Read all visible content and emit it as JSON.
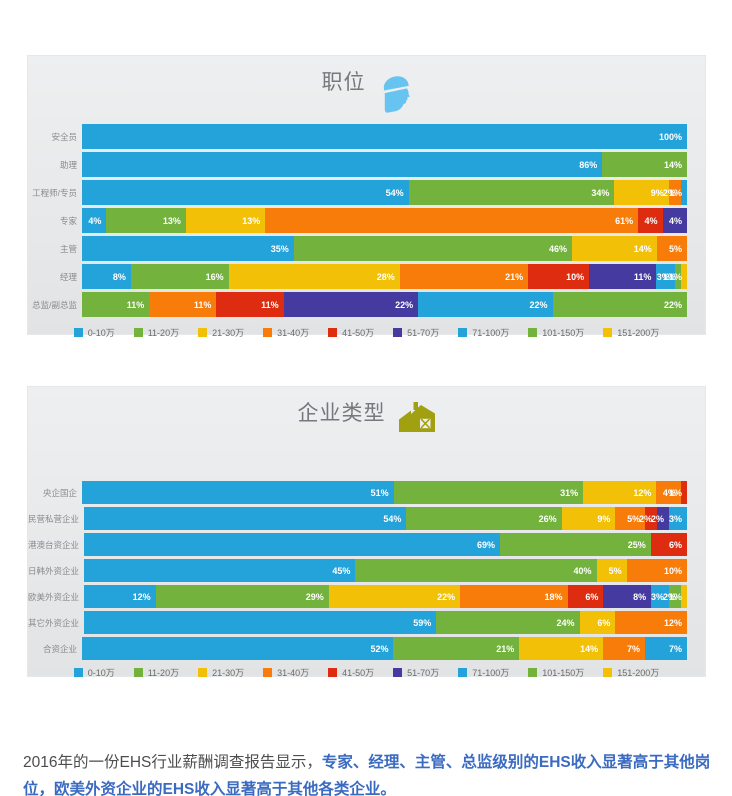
{
  "colors": {
    "blue": "#24a3da",
    "green": "#72b23d",
    "yellow": "#f2c107",
    "orange": "#f87c09",
    "red": "#de2c10",
    "indigo": "#443a9f",
    "title_text": "#77787b",
    "row_label_text": "#8b8b8b",
    "helmet_icon": "#67c4f1",
    "barn_icon": "#a1a010",
    "icon_detail": "#edeeef",
    "footer_text": "#4d4d4f",
    "footer_highlight": "#3b6ac1",
    "panel_background_top": "#eeeff0",
    "panel_background_bottom": "#e1e3e5"
  },
  "band_color_keys": {
    "0-10万": "blue",
    "11-20万": "green",
    "21-30万": "yellow",
    "31-40万": "orange",
    "41-50万": "red",
    "51-70万": "indigo",
    "71-100万": "blue",
    "101-150万": "green",
    "151-200万": "yellow"
  },
  "legend": {
    "items": [
      "0-10万",
      "11-20万",
      "21-30万",
      "31-40万",
      "41-50万",
      "51-70万",
      "71-100万",
      "101-150万",
      "151-200万"
    ],
    "color_keys": [
      "blue",
      "green",
      "yellow",
      "orange",
      "red",
      "indigo",
      "blue",
      "green",
      "yellow"
    ],
    "position": "bottom-center"
  },
  "value_suffix": "%",
  "chart_data": [
    {
      "type": "bar",
      "subtype": "horizontal-stacked-100",
      "title": "职位",
      "icon": "helmet-icon",
      "unit": "%",
      "xlim": [
        0,
        100
      ],
      "grid": false,
      "series_bands": [
        "0-10万",
        "11-20万",
        "21-30万",
        "31-40万",
        "41-50万",
        "51-70万",
        "71-100万",
        "101-150万",
        "151-200万"
      ],
      "categories": [
        "安全员",
        "助理",
        "工程师/专员",
        "专家",
        "主管",
        "经理",
        "总监/副总监"
      ],
      "rows": [
        [
          {
            "band": "0-10万",
            "value": 100
          }
        ],
        [
          {
            "band": "0-10万",
            "value": 86
          },
          {
            "band": "11-20万",
            "value": 14
          }
        ],
        [
          {
            "band": "0-10万",
            "value": 54
          },
          {
            "band": "11-20万",
            "value": 34
          },
          {
            "band": "21-30万",
            "value": 9
          },
          {
            "band": "31-40万",
            "value": 2
          },
          {
            "band": "71-100万",
            "value": 1
          }
        ],
        [
          {
            "band": "0-10万",
            "value": 4
          },
          {
            "band": "11-20万",
            "value": 13
          },
          {
            "band": "21-30万",
            "value": 13
          },
          {
            "band": "31-40万",
            "value": 61
          },
          {
            "band": "41-50万",
            "value": 4
          },
          {
            "band": "51-70万",
            "value": 4
          }
        ],
        [
          {
            "band": "0-10万",
            "value": 35
          },
          {
            "band": "11-20万",
            "value": 46
          },
          {
            "band": "21-30万",
            "value": 14
          },
          {
            "band": "31-40万",
            "value": 5
          }
        ],
        [
          {
            "band": "0-10万",
            "value": 8
          },
          {
            "band": "11-20万",
            "value": 16
          },
          {
            "band": "21-30万",
            "value": 28
          },
          {
            "band": "31-40万",
            "value": 21
          },
          {
            "band": "41-50万",
            "value": 10
          },
          {
            "band": "51-70万",
            "value": 11
          },
          {
            "band": "71-100万",
            "value": 3
          },
          {
            "band": "101-150万",
            "value": 1
          },
          {
            "band": "151-200万",
            "value": 1
          }
        ],
        [
          {
            "band": "11-20万",
            "value": 11
          },
          {
            "band": "31-40万",
            "value": 11
          },
          {
            "band": "41-50万",
            "value": 11
          },
          {
            "band": "51-70万",
            "value": 22
          },
          {
            "band": "71-100万",
            "value": 22
          },
          {
            "band": "101-150万",
            "value": 22
          }
        ]
      ]
    },
    {
      "type": "bar",
      "subtype": "horizontal-stacked-100",
      "title": "企业类型",
      "icon": "barn-icon",
      "unit": "%",
      "xlim": [
        0,
        100
      ],
      "grid": false,
      "series_bands": [
        "0-10万",
        "11-20万",
        "21-30万",
        "31-40万",
        "41-50万",
        "51-70万",
        "71-100万",
        "101-150万",
        "151-200万"
      ],
      "categories": [
        "央企国企",
        "民营私营企业",
        "港澳台资企业",
        "日韩外资企业",
        "欧美外资企业",
        "其它外资企业",
        "合资企业"
      ],
      "rows": [
        [
          {
            "band": "0-10万",
            "value": 51
          },
          {
            "band": "11-20万",
            "value": 31
          },
          {
            "band": "21-30万",
            "value": 12
          },
          {
            "band": "31-40万",
            "value": 4
          },
          {
            "band": "41-50万",
            "value": 1
          }
        ],
        [
          {
            "band": "0-10万",
            "value": 54
          },
          {
            "band": "11-20万",
            "value": 26
          },
          {
            "band": "21-30万",
            "value": 9
          },
          {
            "band": "31-40万",
            "value": 5
          },
          {
            "band": "41-50万",
            "value": 2
          },
          {
            "band": "51-70万",
            "value": 2
          },
          {
            "band": "71-100万",
            "value": 3
          }
        ],
        [
          {
            "band": "0-10万",
            "value": 69
          },
          {
            "band": "11-20万",
            "value": 25
          },
          {
            "band": "41-50万",
            "value": 6
          }
        ],
        [
          {
            "band": "0-10万",
            "value": 45
          },
          {
            "band": "11-20万",
            "value": 40
          },
          {
            "band": "21-30万",
            "value": 5
          },
          {
            "band": "31-40万",
            "value": 10
          }
        ],
        [
          {
            "band": "0-10万",
            "value": 12
          },
          {
            "band": "11-20万",
            "value": 29
          },
          {
            "band": "21-30万",
            "value": 22
          },
          {
            "band": "31-40万",
            "value": 18
          },
          {
            "band": "41-50万",
            "value": 6
          },
          {
            "band": "51-70万",
            "value": 8
          },
          {
            "band": "71-100万",
            "value": 3
          },
          {
            "band": "101-150万",
            "value": 2
          },
          {
            "band": "151-200万",
            "value": 1
          }
        ],
        [
          {
            "band": "0-10万",
            "value": 59
          },
          {
            "band": "11-20万",
            "value": 24
          },
          {
            "band": "21-30万",
            "value": 6
          },
          {
            "band": "31-40万",
            "value": 12
          }
        ],
        [
          {
            "band": "0-10万",
            "value": 52
          },
          {
            "band": "11-20万",
            "value": 21
          },
          {
            "band": "21-30万",
            "value": 14
          },
          {
            "band": "31-40万",
            "value": 7
          },
          {
            "band": "71-100万",
            "value": 7
          }
        ]
      ]
    }
  ],
  "footer": {
    "normal_text": "2016年的一份EHS行业薪酬调查报告显示，",
    "highlight_text": "专家、经理、主管、总监级别的EHS收入显著高于其他岗位，欧美外资企业的EHS收入显著高于其他各类企业。"
  }
}
